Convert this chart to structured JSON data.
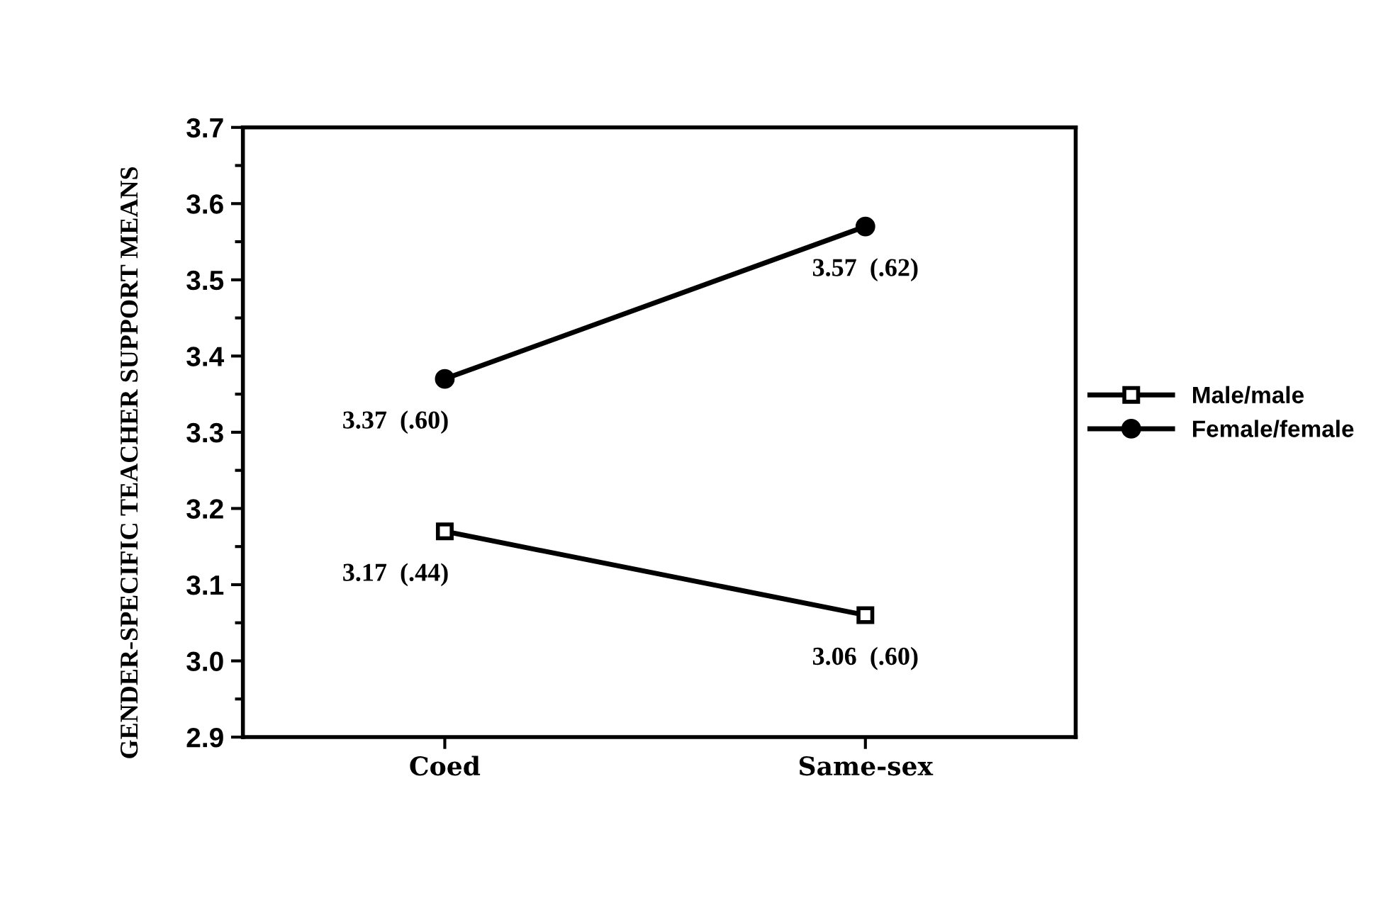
{
  "chart_data": {
    "type": "line",
    "ylabel": "GENDER-SPECIFIC TEACHER SUPPORT MEANS",
    "categories": [
      "Coed",
      "Same-sex"
    ],
    "series": [
      {
        "name": "Male/male",
        "color": "#000000",
        "marker": "square",
        "values": [
          3.17,
          3.06
        ],
        "value_labels": [
          "3.17  (.44)",
          "3.06  (.60)"
        ]
      },
      {
        "name": "Female/female",
        "color": "#000000",
        "marker": "circle",
        "values": [
          3.37,
          3.57
        ],
        "value_labels": [
          "3.37  (.60)",
          "3.57  (.62)"
        ]
      }
    ],
    "ylim": [
      2.9,
      3.7
    ],
    "yticks": [
      2.9,
      {
        "value": 3.0,
        "label": "3.0"
      },
      3.1,
      3.2,
      3.3,
      3.4,
      3.5,
      3.6,
      3.7
    ],
    "grid": false,
    "legend": "right",
    "line_style": "solid"
  }
}
